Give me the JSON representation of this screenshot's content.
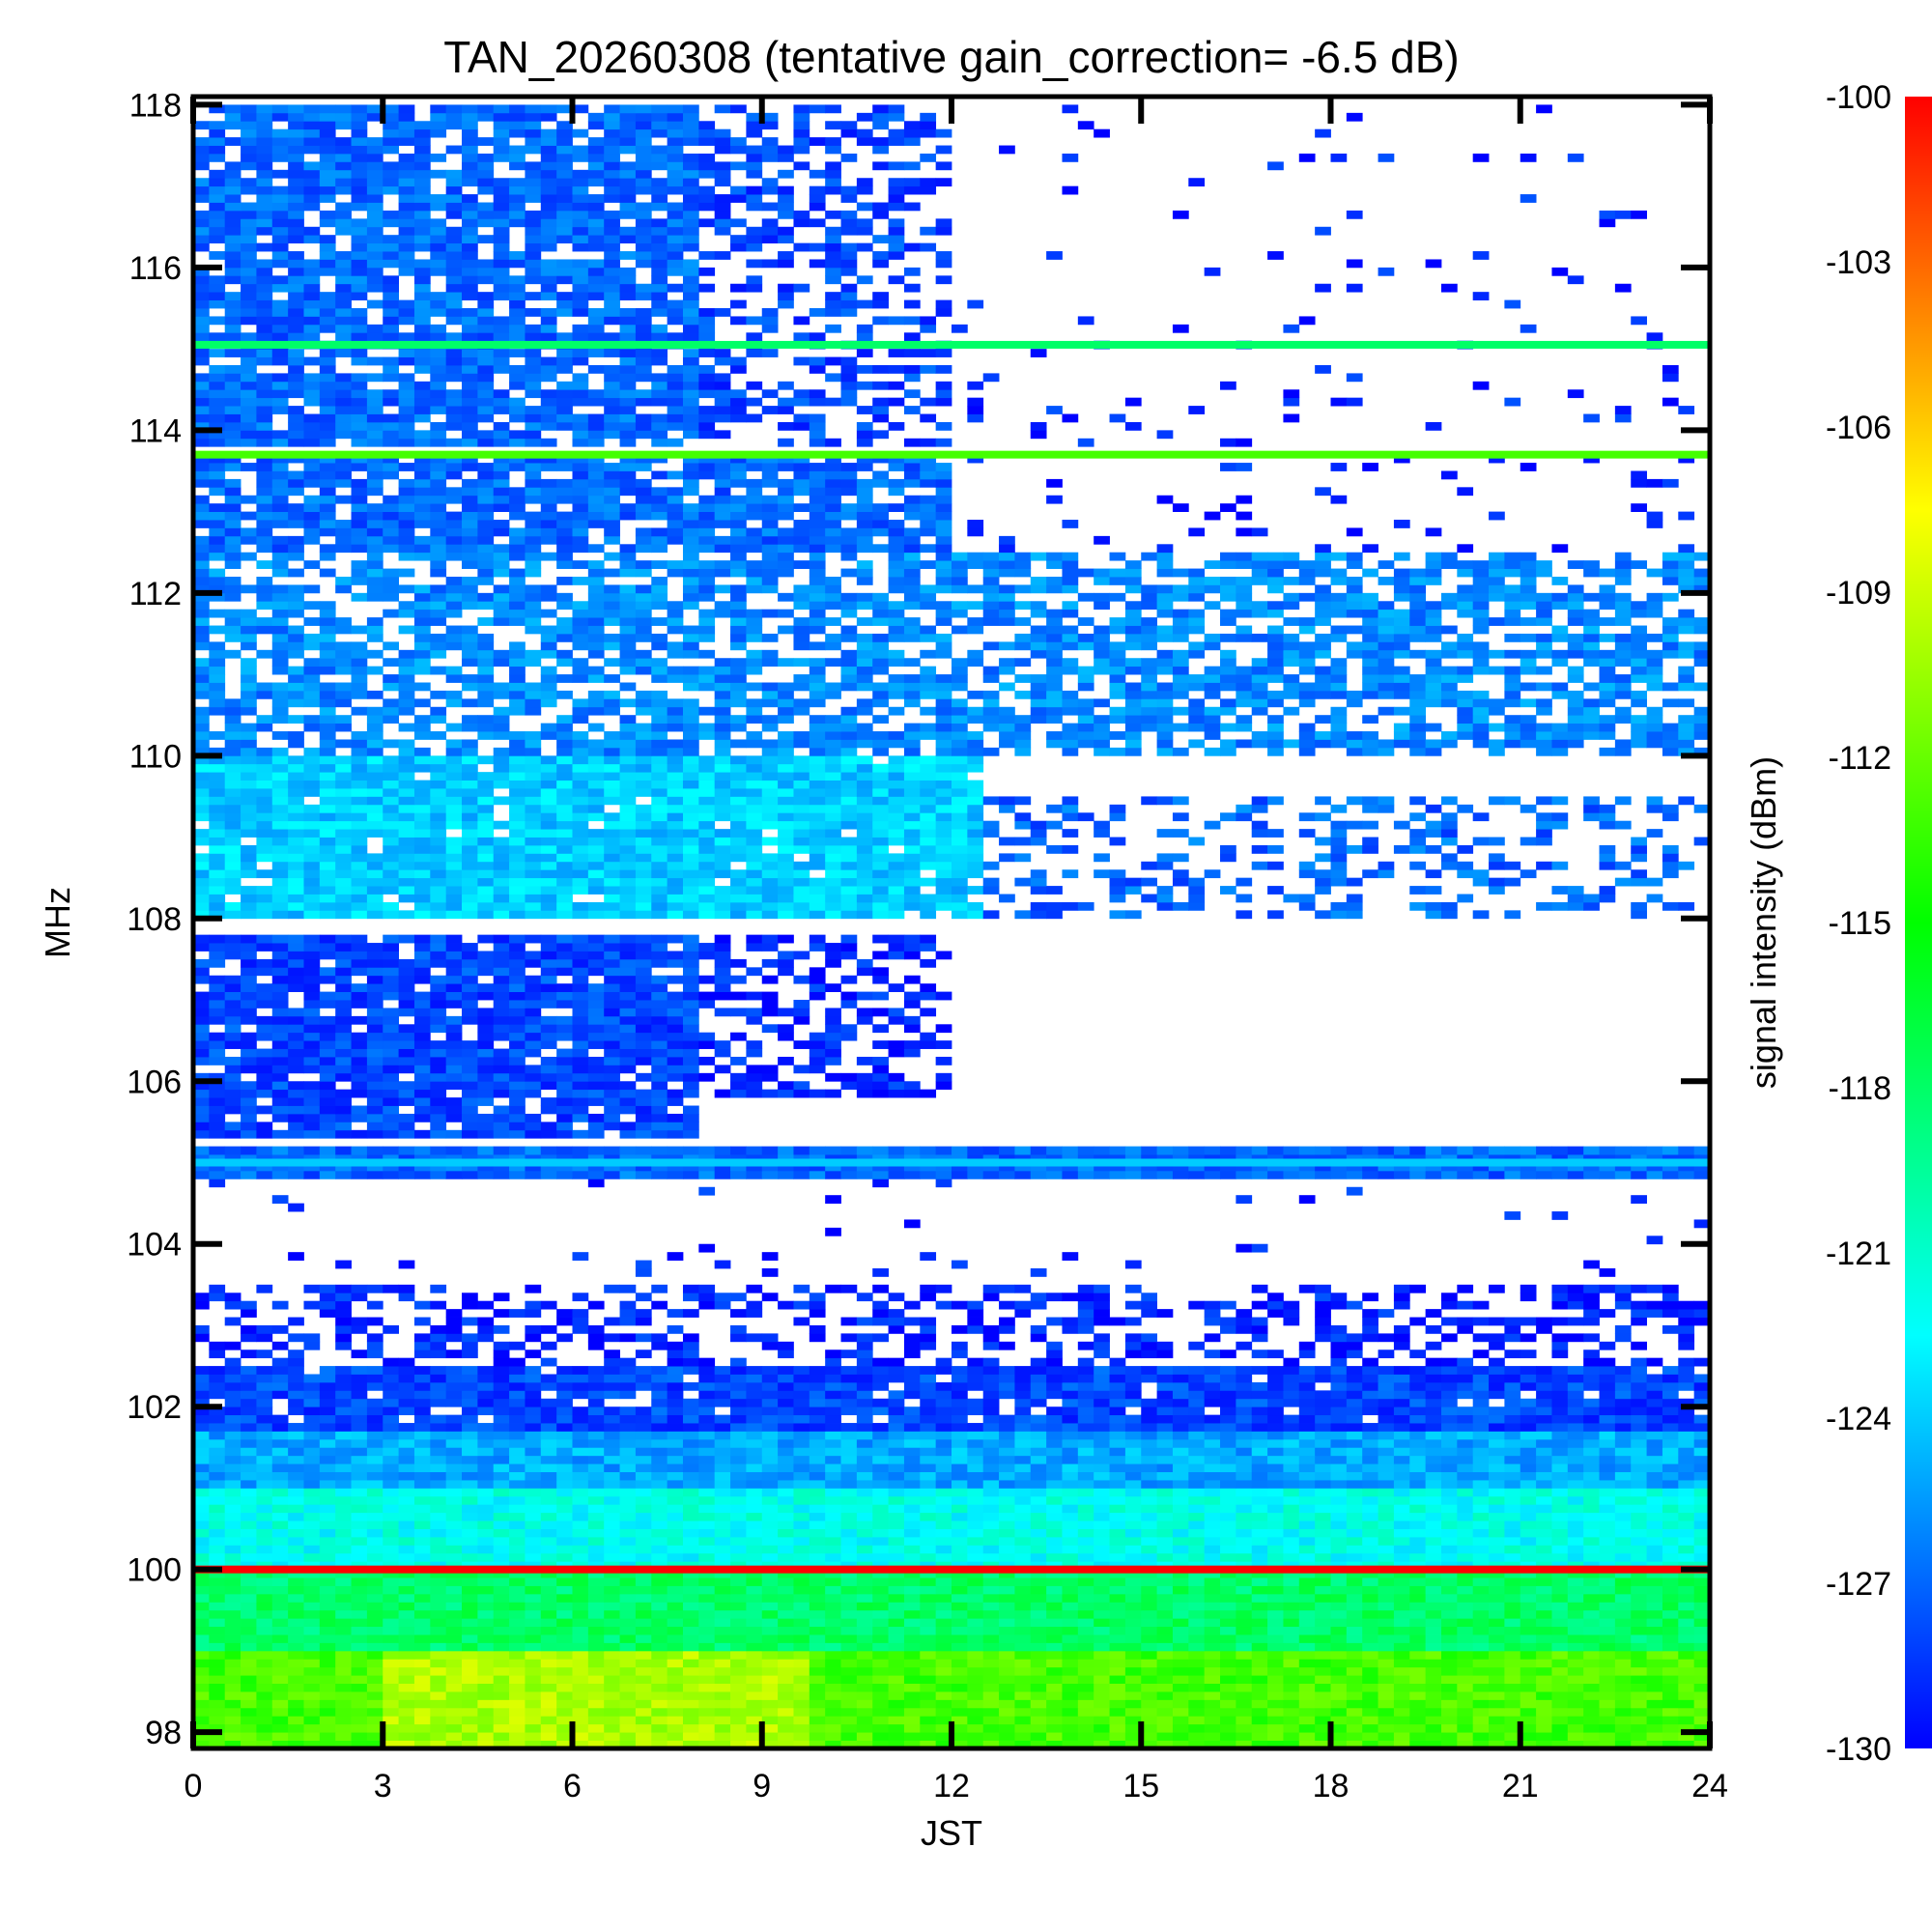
{
  "chart_data": {
    "type": "heatmap",
    "title": "TAN_20260308 (tentative gain_correction= -6.5 dB)",
    "xlabel": "JST",
    "ylabel": "MHz",
    "colorbar_label": "signal intensity (dBm)",
    "xlim": [
      0,
      24
    ],
    "ylim": [
      97.8,
      118.1
    ],
    "x_ticks": [
      0,
      3,
      6,
      9,
      12,
      15,
      18,
      21,
      24
    ],
    "x_tick_labels": [
      "0",
      "3",
      "6",
      "9",
      "12",
      "15",
      "18",
      "21",
      "24"
    ],
    "y_ticks": [
      98,
      100,
      102,
      104,
      106,
      108,
      110,
      112,
      114,
      116,
      118
    ],
    "y_tick_labels": [
      "98",
      "100",
      "102",
      "104",
      "106",
      "108",
      "110",
      "112",
      "114",
      "116",
      "118"
    ],
    "colorbar_range": [
      -130,
      -100
    ],
    "colorbar_ticks": [
      -100,
      -103,
      -106,
      -109,
      -112,
      -115,
      -118,
      -121,
      -124,
      -127,
      -130
    ],
    "colorbar_tick_labels": [
      "-100",
      "-103",
      "-106",
      "-109",
      "-112",
      "-115",
      "-118",
      "-121",
      "-124",
      "-127",
      "-130"
    ],
    "colormap": [
      "#0000ff",
      "#0080ff",
      "#00ffff",
      "#00ff80",
      "#00ff00",
      "#80ff00",
      "#ffff00",
      "#ff8000",
      "#ff0000"
    ],
    "empty_color": "#ffffff",
    "persistent_lines": [
      {
        "freq_mhz": 100.0,
        "dbm": -100
      },
      {
        "freq_mhz": 105.0,
        "dbm": -124
      },
      {
        "freq_mhz": 113.7,
        "dbm": -113
      },
      {
        "freq_mhz": 115.05,
        "dbm": -118
      }
    ],
    "regions": [
      {
        "x": [
          0,
          24
        ],
        "y": [
          97.8,
          99.0
        ],
        "dbm": -113,
        "coverage": 1.0
      },
      {
        "x": [
          3,
          9.8
        ],
        "y": [
          97.8,
          99.0
        ],
        "dbm": -110,
        "coverage": 1.0
      },
      {
        "x": [
          0,
          24
        ],
        "y": [
          99.0,
          100.0
        ],
        "dbm": -118,
        "coverage": 1.0
      },
      {
        "x": [
          0,
          24
        ],
        "y": [
          100.0,
          101.0
        ],
        "dbm": -122,
        "coverage": 1.0
      },
      {
        "x": [
          0,
          24
        ],
        "y": [
          101.0,
          101.7
        ],
        "dbm": -125,
        "coverage": 1.0
      },
      {
        "x": [
          0,
          24
        ],
        "y": [
          101.7,
          102.5
        ],
        "dbm": -128,
        "coverage": 0.95
      },
      {
        "x": [
          0,
          24
        ],
        "y": [
          102.5,
          103.5
        ],
        "dbm": -129,
        "coverage": 0.45
      },
      {
        "x": [
          0,
          24
        ],
        "y": [
          103.5,
          104.8
        ],
        "dbm": -129,
        "coverage": 0.03
      },
      {
        "x": [
          0,
          24
        ],
        "y": [
          104.8,
          105.2
        ],
        "dbm": -127,
        "coverage": 1.0
      },
      {
        "x": [
          0,
          8
        ],
        "y": [
          105.3,
          107.8
        ],
        "dbm": -128,
        "coverage": 0.9
      },
      {
        "x": [
          8,
          12
        ],
        "y": [
          105.8,
          107.8
        ],
        "dbm": -129,
        "coverage": 0.5
      },
      {
        "x": [
          0,
          12.5
        ],
        "y": [
          108.0,
          110.0
        ],
        "dbm": -124,
        "coverage": 0.95
      },
      {
        "x": [
          12.5,
          24
        ],
        "y": [
          108.0,
          109.5
        ],
        "dbm": -127,
        "coverage": 0.35
      },
      {
        "x": [
          0,
          24
        ],
        "y": [
          110.0,
          112.5
        ],
        "dbm": -126,
        "coverage": 0.7
      },
      {
        "x": [
          0,
          12
        ],
        "y": [
          112.5,
          113.7
        ],
        "dbm": -127,
        "coverage": 0.85
      },
      {
        "x": [
          12,
          24
        ],
        "y": [
          112.5,
          113.7
        ],
        "dbm": -129,
        "coverage": 0.08
      },
      {
        "x": [
          0,
          8
        ],
        "y": [
          113.8,
          118.0
        ],
        "dbm": -127,
        "coverage": 0.85
      },
      {
        "x": [
          8,
          12
        ],
        "y": [
          113.8,
          118.0
        ],
        "dbm": -128,
        "coverage": 0.45
      },
      {
        "x": [
          12,
          24
        ],
        "y": [
          113.8,
          118.0
        ],
        "dbm": -129,
        "coverage": 0.05
      }
    ]
  }
}
